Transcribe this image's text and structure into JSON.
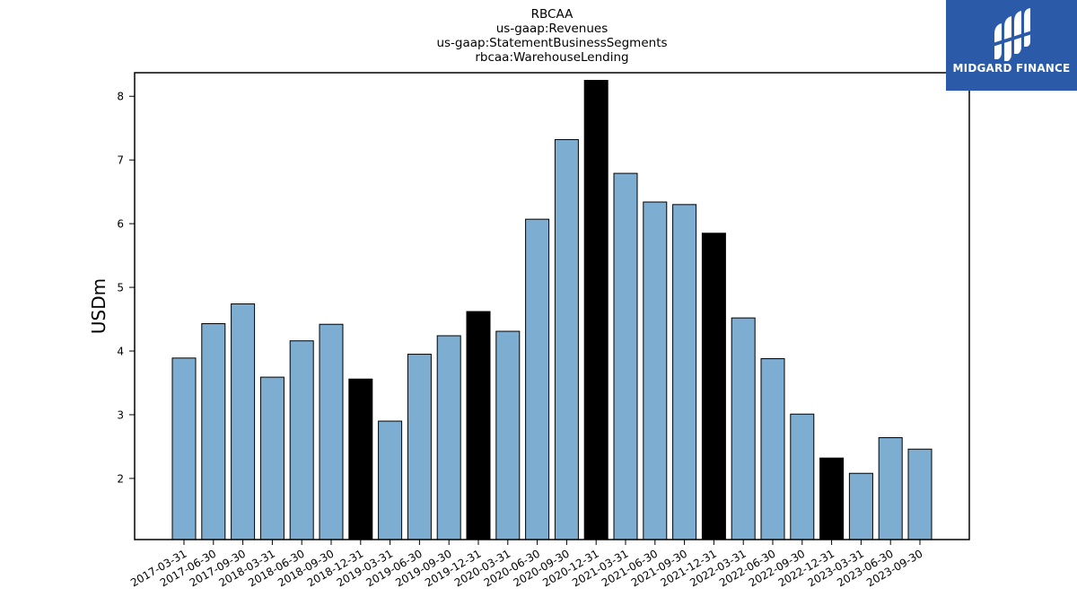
{
  "logo": {
    "text": "MIDGARD FINANCE",
    "background": "#2a5aa8"
  },
  "chart_data": {
    "type": "bar",
    "title_lines": [
      "RBCAA",
      "us-gaap:Revenues",
      "us-gaap:StatementBusinessSegments",
      "rbcaa:WarehouseLending"
    ],
    "xlabel": "",
    "ylabel": "USDm",
    "ylim": [
      1.04,
      8.37
    ],
    "yticks": [
      2,
      3,
      4,
      5,
      6,
      7,
      8
    ],
    "grid": false,
    "legend": "none",
    "colors": {
      "quarter": "#7eadd2",
      "year_end": "#000000",
      "edge": "#000000"
    },
    "categories": [
      "2017-03-31",
      "2017-06-30",
      "2017-09-30",
      "2018-03-31",
      "2018-06-30",
      "2018-09-30",
      "2018-12-31",
      "2019-03-31",
      "2019-06-30",
      "2019-09-30",
      "2019-12-31",
      "2020-03-31",
      "2020-06-30",
      "2020-09-30",
      "2020-12-31",
      "2021-03-31",
      "2021-06-30",
      "2021-09-30",
      "2021-12-31",
      "2022-03-31",
      "2022-06-30",
      "2022-09-30",
      "2022-12-31",
      "2023-03-31",
      "2023-06-30",
      "2023-09-30"
    ],
    "values": [
      3.89,
      4.43,
      4.74,
      3.59,
      4.16,
      4.42,
      3.56,
      2.9,
      3.95,
      4.24,
      4.62,
      4.31,
      6.07,
      7.32,
      8.25,
      6.79,
      6.34,
      6.3,
      5.85,
      4.52,
      3.88,
      3.01,
      2.32,
      2.08,
      2.64,
      2.46
    ],
    "highlight": [
      false,
      false,
      false,
      false,
      false,
      false,
      true,
      false,
      false,
      false,
      true,
      false,
      false,
      false,
      true,
      false,
      false,
      false,
      true,
      false,
      false,
      false,
      true,
      false,
      false,
      false
    ]
  }
}
